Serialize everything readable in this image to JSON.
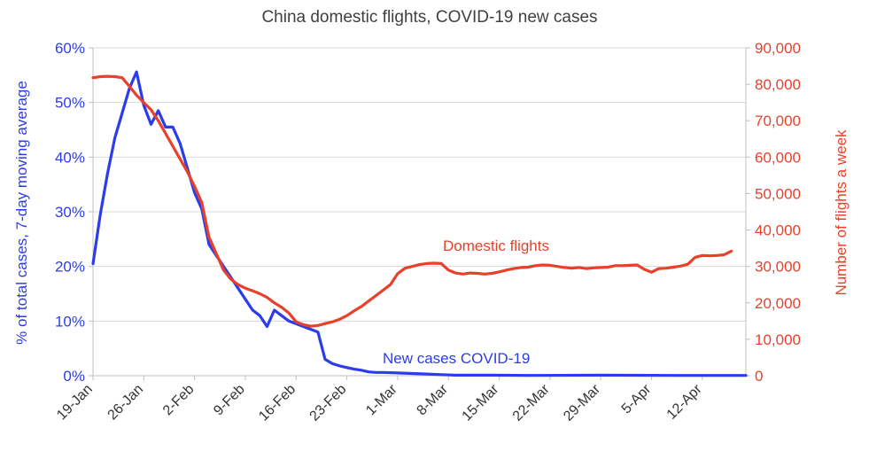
{
  "chart_data": {
    "type": "line",
    "title": "China domestic flights, COVID-19 new cases",
    "x_tick_labels": [
      "19-Jan",
      "26-Jan",
      "2-Feb",
      "9-Feb",
      "16-Feb",
      "23-Feb",
      "1-Mar",
      "8-Mar",
      "15-Mar",
      "22-Mar",
      "29-Mar",
      "5-Apr",
      "12-Apr"
    ],
    "x_range_days": [
      0,
      90
    ],
    "y_left": {
      "label": "% of total cases, 7-day moving average",
      "range": [
        0,
        60
      ],
      "ticks": [
        "0%",
        "10%",
        "20%",
        "30%",
        "40%",
        "50%",
        "60%"
      ],
      "color": "#2b3de8"
    },
    "y_right": {
      "label": "Number of flights a week",
      "range": [
        0,
        90000
      ],
      "ticks": [
        "0",
        "10,000",
        "20,000",
        "30,000",
        "40,000",
        "50,000",
        "60,000",
        "70,000",
        "80,000",
        "90,000"
      ],
      "color": "#e8412b"
    },
    "grid": "horizontal",
    "series": [
      {
        "name": "New cases COVID-19",
        "axis": "left",
        "color": "#2b3de8",
        "points": [
          [
            0,
            20.5
          ],
          [
            1,
            29.5
          ],
          [
            2,
            37
          ],
          [
            3,
            43.5
          ],
          [
            4,
            48
          ],
          [
            5,
            52.5
          ],
          [
            6,
            55.6
          ],
          [
            7,
            49.5
          ],
          [
            8,
            46
          ],
          [
            9,
            48.5
          ],
          [
            10,
            45.5
          ],
          [
            11,
            45.5
          ],
          [
            12,
            42.5
          ],
          [
            13,
            38
          ],
          [
            14,
            33.5
          ],
          [
            15,
            30.5
          ],
          [
            16,
            24
          ],
          [
            17,
            22
          ],
          [
            18,
            20
          ],
          [
            19,
            18
          ],
          [
            20,
            16
          ],
          [
            21,
            14
          ],
          [
            22,
            12
          ],
          [
            23,
            11
          ],
          [
            24,
            9
          ],
          [
            25,
            12
          ],
          [
            26,
            11
          ],
          [
            27,
            10
          ],
          [
            28,
            9.5
          ],
          [
            29,
            9
          ],
          [
            30,
            8.5
          ],
          [
            31,
            8
          ],
          [
            32,
            3
          ],
          [
            33,
            2.2
          ],
          [
            34,
            1.8
          ],
          [
            35,
            1.5
          ],
          [
            36,
            1.2
          ],
          [
            37,
            1
          ],
          [
            38,
            0.7
          ],
          [
            39,
            0.6
          ],
          [
            40,
            0.6
          ],
          [
            42,
            0.5
          ],
          [
            44,
            0.4
          ],
          [
            46,
            0.3
          ],
          [
            48,
            0.2
          ],
          [
            50,
            0.1
          ],
          [
            55,
            0.1
          ],
          [
            60,
            0.05
          ],
          [
            70,
            0.1
          ],
          [
            80,
            0.05
          ],
          [
            90,
            0.05
          ]
        ]
      },
      {
        "name": "Domestic flights",
        "axis": "right",
        "color": "#e8412b",
        "points": [
          [
            0,
            81800
          ],
          [
            1,
            82100
          ],
          [
            2,
            82200
          ],
          [
            3,
            82100
          ],
          [
            4,
            81800
          ],
          [
            5,
            79500
          ],
          [
            6,
            77000
          ],
          [
            7,
            75000
          ],
          [
            8,
            73000
          ],
          [
            9,
            70000
          ],
          [
            10,
            66500
          ],
          [
            11,
            63000
          ],
          [
            12,
            59500
          ],
          [
            13,
            56000
          ],
          [
            14,
            52000
          ],
          [
            15,
            47500
          ],
          [
            16,
            38000
          ],
          [
            17,
            33500
          ],
          [
            18,
            29000
          ],
          [
            19,
            26500
          ],
          [
            20,
            25000
          ],
          [
            21,
            24000
          ],
          [
            22,
            23300
          ],
          [
            23,
            22500
          ],
          [
            24,
            21500
          ],
          [
            25,
            20000
          ],
          [
            26,
            18800
          ],
          [
            27,
            17200
          ],
          [
            28,
            14800
          ],
          [
            29,
            14000
          ],
          [
            30,
            13600
          ],
          [
            31,
            13800
          ],
          [
            32,
            14300
          ],
          [
            33,
            14800
          ],
          [
            34,
            15500
          ],
          [
            35,
            16500
          ],
          [
            36,
            17800
          ],
          [
            37,
            19000
          ],
          [
            38,
            20500
          ],
          [
            39,
            22000
          ],
          [
            40,
            23500
          ],
          [
            41,
            25000
          ],
          [
            42,
            28000
          ],
          [
            43,
            29500
          ],
          [
            44,
            30000
          ],
          [
            45,
            30500
          ],
          [
            46,
            30800
          ],
          [
            47,
            30900
          ],
          [
            48,
            30800
          ],
          [
            49,
            29000
          ],
          [
            50,
            28200
          ],
          [
            51,
            27900
          ],
          [
            52,
            28200
          ],
          [
            53,
            28100
          ],
          [
            54,
            27900
          ],
          [
            55,
            28100
          ],
          [
            56,
            28500
          ],
          [
            57,
            29000
          ],
          [
            58,
            29400
          ],
          [
            59,
            29700
          ],
          [
            60,
            29800
          ],
          [
            61,
            30200
          ],
          [
            62,
            30400
          ],
          [
            63,
            30300
          ],
          [
            64,
            30000
          ],
          [
            65,
            29700
          ],
          [
            66,
            29500
          ],
          [
            67,
            29700
          ],
          [
            68,
            29400
          ],
          [
            69,
            29600
          ],
          [
            70,
            29700
          ],
          [
            71,
            29800
          ],
          [
            72,
            30200
          ],
          [
            73,
            30200
          ],
          [
            74,
            30300
          ],
          [
            75,
            30400
          ],
          [
            76,
            29200
          ],
          [
            77,
            28400
          ],
          [
            78,
            29400
          ],
          [
            79,
            29500
          ],
          [
            80,
            29800
          ],
          [
            81,
            30100
          ],
          [
            82,
            30600
          ],
          [
            83,
            32500
          ],
          [
            84,
            33000
          ],
          [
            85,
            32900
          ],
          [
            86,
            33000
          ],
          [
            87,
            33200
          ],
          [
            88,
            34200
          ]
        ]
      }
    ],
    "annotations": [
      {
        "text": "Domestic flights",
        "series": "Domestic flights"
      },
      {
        "text": "New cases COVID-19",
        "series": "New cases COVID-19"
      }
    ]
  }
}
